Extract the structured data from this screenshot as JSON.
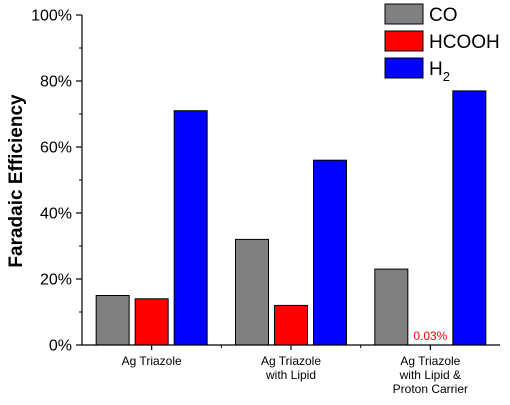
{
  "chart_data": {
    "type": "bar",
    "ylabel": "Faradaic Efficiency",
    "xlabel": "",
    "ylim": [
      0,
      100
    ],
    "yticks": [
      0,
      20,
      40,
      60,
      80,
      100
    ],
    "ytick_labels": [
      "0%",
      "20%",
      "40%",
      "60%",
      "80%",
      "100%"
    ],
    "categories": [
      {
        "lines": [
          "Ag Triazole"
        ]
      },
      {
        "lines": [
          "Ag Triazole",
          "with Lipid"
        ]
      },
      {
        "lines": [
          "Ag Triazole",
          "with Lipid &",
          "Proton Carrier"
        ]
      }
    ],
    "series": [
      {
        "name": "CO",
        "legend_main": "CO",
        "legend_sub": "",
        "color": "#808080",
        "values": [
          15,
          32,
          23
        ]
      },
      {
        "name": "HCOOH",
        "legend_main": "HCOOH",
        "legend_sub": "",
        "color": "#ff0000",
        "values": [
          14,
          12,
          0.03
        ]
      },
      {
        "name": "H2",
        "legend_main": "H",
        "legend_sub": "2",
        "color": "#0000ff",
        "values": [
          71,
          56,
          77
        ]
      }
    ],
    "annotations": [
      {
        "text": "0.03%",
        "category_index": 2,
        "series_index": 1,
        "color": "#ff0000"
      }
    ],
    "legend": {
      "position": "top-right"
    },
    "grid": false
  }
}
